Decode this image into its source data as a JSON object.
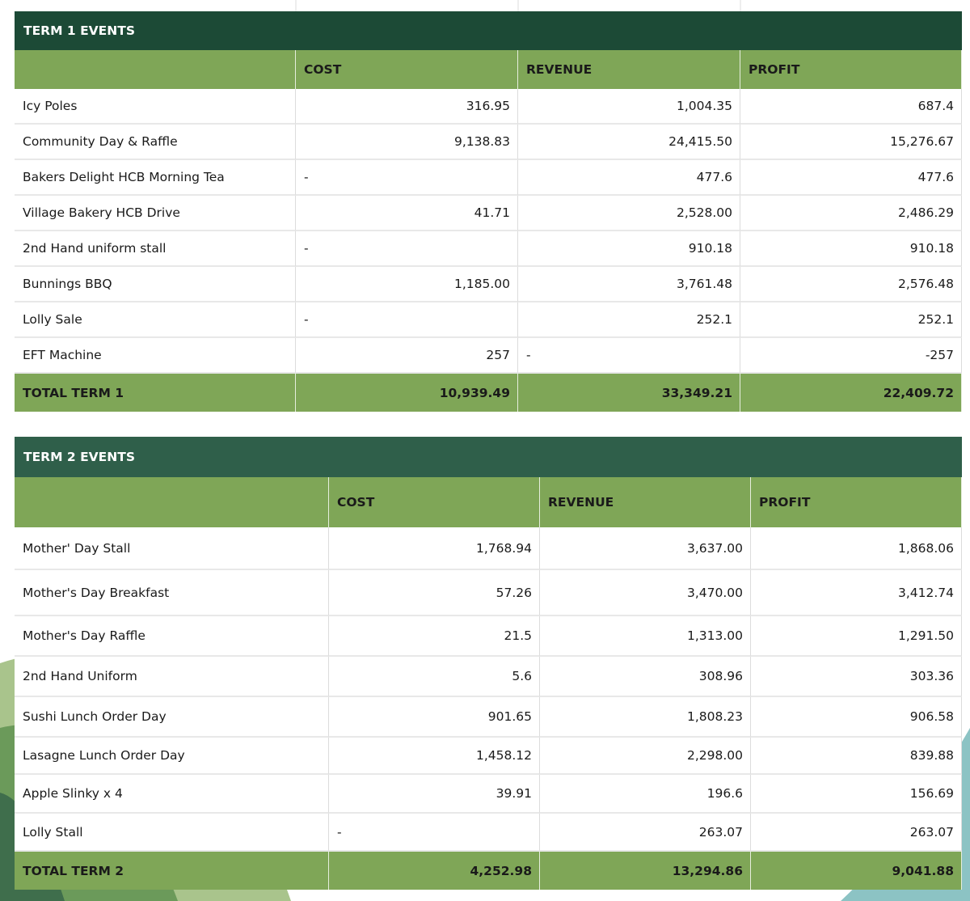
{
  "tables": [
    {
      "title": "TERM 1 EVENTS",
      "headers": [
        "COST",
        "REVENUE",
        "PROFIT"
      ],
      "rows": [
        [
          "Icy Poles",
          "316.95",
          "1,004.35",
          "687.4"
        ],
        [
          "Community Day & Raffle",
          "9,138.83",
          "24,415.50",
          "15,276.67"
        ],
        [
          "Bakers Delight HCB Morning Tea",
          "-",
          "477.6",
          "477.6"
        ],
        [
          "Village Bakery HCB Drive",
          "41.71",
          "2,528.00",
          "2,486.29"
        ],
        [
          "2nd Hand uniform stall",
          "-",
          "910.18",
          "910.18"
        ],
        [
          "Bunnings BBQ",
          "1,185.00",
          "3,761.48",
          "2,576.48"
        ],
        [
          "Lolly Sale",
          "-",
          "252.1",
          "252.1"
        ],
        [
          "EFT Machine",
          "257",
          "-",
          "-257"
        ]
      ],
      "total": [
        "TOTAL TERM 1",
        "10,939.49",
        "33,349.21",
        "22,409.72"
      ]
    },
    {
      "title": "TERM 2 EVENTS",
      "headers": [
        "COST",
        "REVENUE",
        "PROFIT"
      ],
      "rows": [
        [
          "Mother' Day Stall",
          "1,768.94",
          "3,637.00",
          "1,868.06"
        ],
        [
          "Mother's Day Breakfast",
          "57.26",
          "3,470.00",
          "3,412.74"
        ],
        [
          "Mother's Day Raffle",
          "21.5",
          "1,313.00",
          "1,291.50"
        ],
        [
          "2nd Hand Uniform",
          "5.6",
          "308.96",
          "303.36"
        ],
        [
          "Sushi Lunch Order Day",
          "901.65",
          "1,808.23",
          "906.58"
        ],
        [
          "Lasagne Lunch Order Day",
          "1,458.12",
          "2,298.00",
          "839.88"
        ],
        [
          "Apple Slinky x 4",
          "39.91",
          "196.6",
          "156.69"
        ],
        [
          "Lolly Stall",
          "-",
          "263.07",
          "263.07"
        ]
      ],
      "total": [
        "TOTAL TERM 2",
        "4,252.98",
        "13,294.86",
        "9,041.88"
      ]
    }
  ]
}
